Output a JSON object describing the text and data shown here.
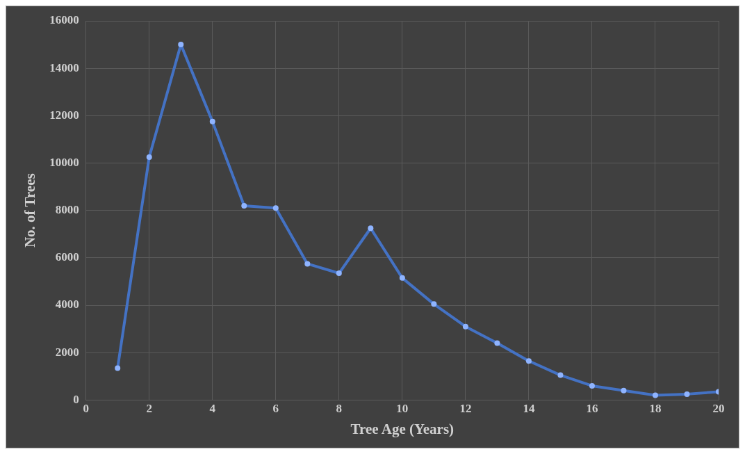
{
  "chart_data": {
    "type": "line",
    "xlabel": "Tree Age (Years)",
    "ylabel": "No. of Trees",
    "x": [
      1,
      2,
      3,
      4,
      5,
      6,
      7,
      8,
      9,
      10,
      11,
      12,
      13,
      14,
      15,
      16,
      17,
      18,
      19,
      20
    ],
    "series": [
      {
        "color": "#4472c4",
        "values": [
          1350,
          10250,
          15000,
          11750,
          8200,
          8100,
          5750,
          5350,
          7250,
          5150,
          4050,
          3100,
          2400,
          1650,
          1050,
          600,
          400,
          200,
          250,
          350
        ]
      }
    ],
    "xlim": [
      0,
      20
    ],
    "xticks": [
      0,
      2,
      4,
      6,
      8,
      10,
      12,
      14,
      16,
      18,
      20
    ],
    "ylim": [
      0,
      16000
    ],
    "yticks": [
      0,
      2000,
      4000,
      6000,
      8000,
      10000,
      12000,
      14000,
      16000
    ],
    "grid": true,
    "marker": "circle",
    "line_style": "solid",
    "legend": false
  }
}
